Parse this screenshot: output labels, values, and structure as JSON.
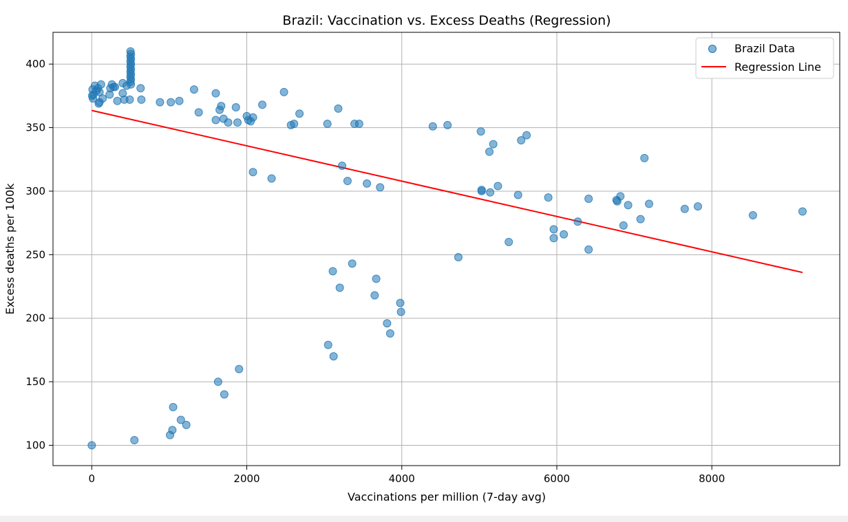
{
  "chart_data": {
    "type": "scatter",
    "title": "Brazil: Vaccination vs. Excess Deaths (Regression)",
    "xlabel": "Vaccinations per million (7-day avg)",
    "ylabel": "Excess deaths per 100k",
    "xlim": [
      -500,
      9650
    ],
    "ylim": [
      84,
      425
    ],
    "xticks": [
      0,
      2000,
      4000,
      6000,
      8000
    ],
    "yticks": [
      100,
      150,
      200,
      250,
      300,
      350,
      400
    ],
    "xtick_labels": [
      "0",
      "2000",
      "4000",
      "6000",
      "8000"
    ],
    "ytick_labels": [
      "100",
      "150",
      "200",
      "250",
      "300",
      "350",
      "400"
    ],
    "grid": true,
    "legend_position": "top-right",
    "series": [
      {
        "name": "Brazil Data",
        "kind": "scatter",
        "color": "#1f77b4",
        "points": [
          [
            0,
            100
          ],
          [
            10,
            380
          ],
          [
            5,
            375
          ],
          [
            15,
            373
          ],
          [
            20,
            376
          ],
          [
            40,
            383
          ],
          [
            60,
            379
          ],
          [
            80,
            381
          ],
          [
            100,
            378
          ],
          [
            120,
            384
          ],
          [
            140,
            373
          ],
          [
            90,
            369
          ],
          [
            100,
            370
          ],
          [
            230,
            376
          ],
          [
            240,
            381
          ],
          [
            260,
            384
          ],
          [
            280,
            382
          ],
          [
            300,
            382
          ],
          [
            330,
            371
          ],
          [
            400,
            385
          ],
          [
            400,
            377
          ],
          [
            420,
            372
          ],
          [
            450,
            383
          ],
          [
            490,
            372
          ],
          [
            630,
            381
          ],
          [
            640,
            372
          ],
          [
            500,
            410
          ],
          [
            505,
            408
          ],
          [
            500,
            406
          ],
          [
            505,
            404
          ],
          [
            500,
            402
          ],
          [
            505,
            400
          ],
          [
            500,
            398
          ],
          [
            505,
            396
          ],
          [
            500,
            394
          ],
          [
            505,
            392
          ],
          [
            500,
            390
          ],
          [
            505,
            388
          ],
          [
            500,
            386
          ],
          [
            505,
            384
          ],
          [
            880,
            370
          ],
          [
            1020,
            370
          ],
          [
            1130,
            371
          ],
          [
            1320,
            380
          ],
          [
            1380,
            362
          ],
          [
            1600,
            377
          ],
          [
            1600,
            356
          ],
          [
            1650,
            364
          ],
          [
            1670,
            367
          ],
          [
            1700,
            357
          ],
          [
            1760,
            354
          ],
          [
            1860,
            366
          ],
          [
            1880,
            354
          ],
          [
            2000,
            359
          ],
          [
            2020,
            356
          ],
          [
            2050,
            355
          ],
          [
            2080,
            358
          ],
          [
            2080,
            315
          ],
          [
            2200,
            368
          ],
          [
            2320,
            310
          ],
          [
            2480,
            378
          ],
          [
            2570,
            352
          ],
          [
            2610,
            353
          ],
          [
            2680,
            361
          ],
          [
            3040,
            353
          ],
          [
            3180,
            365
          ],
          [
            3230,
            320
          ],
          [
            3300,
            308
          ],
          [
            3390,
            353
          ],
          [
            3450,
            353
          ],
          [
            3550,
            306
          ],
          [
            3720,
            303
          ],
          [
            4400,
            351
          ],
          [
            4590,
            352
          ],
          [
            5020,
            347
          ],
          [
            5030,
            301
          ],
          [
            5030,
            300
          ],
          [
            5140,
            299
          ],
          [
            5130,
            331
          ],
          [
            5180,
            337
          ],
          [
            5240,
            304
          ],
          [
            5500,
            297
          ],
          [
            5540,
            340
          ],
          [
            5610,
            344
          ],
          [
            5890,
            295
          ],
          [
            5960,
            270
          ],
          [
            5960,
            263
          ],
          [
            6090,
            266
          ],
          [
            6270,
            276
          ],
          [
            6410,
            294
          ],
          [
            6410,
            254
          ],
          [
            6770,
            293
          ],
          [
            6780,
            292
          ],
          [
            6820,
            296
          ],
          [
            6860,
            273
          ],
          [
            6920,
            289
          ],
          [
            7080,
            278
          ],
          [
            7130,
            326
          ],
          [
            7190,
            290
          ],
          [
            7650,
            286
          ],
          [
            7820,
            288
          ],
          [
            8530,
            281
          ],
          [
            9170,
            284
          ],
          [
            4730,
            248
          ],
          [
            5380,
            260
          ],
          [
            3110,
            237
          ],
          [
            3200,
            224
          ],
          [
            3360,
            243
          ],
          [
            3670,
            231
          ],
          [
            3650,
            218
          ],
          [
            3810,
            196
          ],
          [
            3850,
            188
          ],
          [
            3980,
            212
          ],
          [
            3990,
            205
          ],
          [
            3050,
            179
          ],
          [
            3120,
            170
          ],
          [
            1630,
            150
          ],
          [
            1710,
            140
          ],
          [
            1900,
            160
          ],
          [
            550,
            104
          ],
          [
            1010,
            108
          ],
          [
            1040,
            112
          ],
          [
            1050,
            130
          ],
          [
            1150,
            120
          ],
          [
            1220,
            116
          ]
        ]
      },
      {
        "name": "Regression Line",
        "kind": "line",
        "color": "#ff0000",
        "x": [
          0,
          9170
        ],
        "y": [
          363.5,
          236
        ]
      }
    ],
    "legend": [
      "Brazil Data",
      "Regression Line"
    ]
  }
}
